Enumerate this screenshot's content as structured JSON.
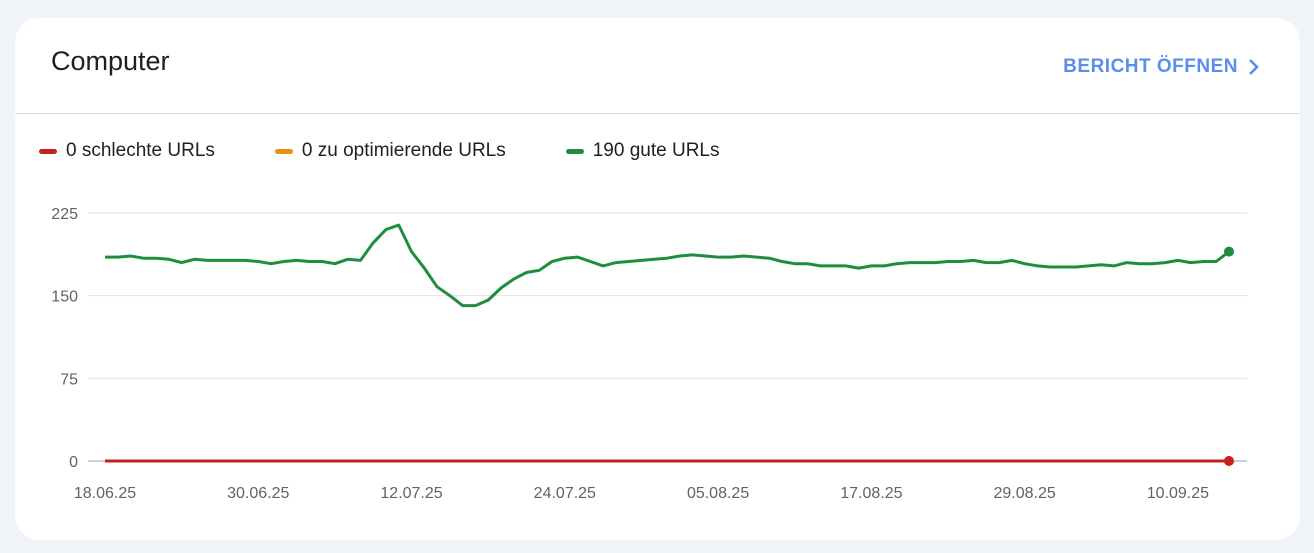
{
  "card": {
    "title": "Computer",
    "link_label": "BERICHT ÖFFNEN",
    "link_icon": "chevron-right-icon"
  },
  "legend": [
    {
      "label": "0 schlechte URLs",
      "color": "#c5221f"
    },
    {
      "label": "0 zu optimierende URLs",
      "color": "#e8900c"
    },
    {
      "label": "190 gute URLs",
      "color": "#1e8e3e"
    }
  ],
  "chart_data": {
    "type": "line",
    "ylim": [
      0,
      225
    ],
    "yticks": [
      "0",
      "75",
      "150",
      "225"
    ],
    "xticks": [
      "18.06.25",
      "30.06.25",
      "12.07.25",
      "24.07.25",
      "05.08.25",
      "17.08.25",
      "29.08.25",
      "10.09.25"
    ],
    "grid": true,
    "legend_position": "top-left",
    "x": [
      "18.06.25",
      "19.06.25",
      "20.06.25",
      "21.06.25",
      "22.06.25",
      "23.06.25",
      "24.06.25",
      "25.06.25",
      "26.06.25",
      "27.06.25",
      "28.06.25",
      "29.06.25",
      "30.06.25",
      "01.07.25",
      "02.07.25",
      "03.07.25",
      "04.07.25",
      "05.07.25",
      "06.07.25",
      "07.07.25",
      "08.07.25",
      "09.07.25",
      "10.07.25",
      "11.07.25",
      "12.07.25",
      "13.07.25",
      "14.07.25",
      "15.07.25",
      "16.07.25",
      "17.07.25",
      "18.07.25",
      "19.07.25",
      "20.07.25",
      "21.07.25",
      "22.07.25",
      "23.07.25",
      "24.07.25",
      "25.07.25",
      "26.07.25",
      "27.07.25",
      "28.07.25",
      "29.07.25",
      "30.07.25",
      "31.07.25",
      "01.08.25",
      "02.08.25",
      "03.08.25",
      "04.08.25",
      "05.08.25",
      "06.08.25",
      "07.08.25",
      "08.08.25",
      "09.08.25",
      "10.08.25",
      "11.08.25",
      "12.08.25",
      "13.08.25",
      "14.08.25",
      "15.08.25",
      "16.08.25",
      "17.08.25",
      "18.08.25",
      "19.08.25",
      "20.08.25",
      "21.08.25",
      "22.08.25",
      "23.08.25",
      "24.08.25",
      "25.08.25",
      "26.08.25",
      "27.08.25",
      "28.08.25",
      "29.08.25",
      "30.08.25",
      "31.08.25",
      "01.09.25",
      "02.09.25",
      "03.09.25",
      "04.09.25",
      "05.09.25",
      "06.09.25",
      "07.09.25",
      "08.09.25",
      "09.09.25",
      "10.09.25",
      "11.09.25",
      "12.09.25",
      "13.09.25",
      "14.09.25"
    ],
    "series": [
      {
        "name": "0 schlechte URLs",
        "color": "#c5221f",
        "values": "zero"
      },
      {
        "name": "0 zu optimierende URLs",
        "color": "#e8900c",
        "values": "zero"
      },
      {
        "name": "190 gute URLs",
        "color": "#1e8e3e",
        "values": [
          185,
          185,
          186,
          184,
          184,
          183,
          180,
          183,
          182,
          182,
          182,
          182,
          181,
          179,
          181,
          182,
          181,
          181,
          179,
          183,
          182,
          198,
          210,
          214,
          190,
          175,
          158,
          150,
          141,
          141,
          146,
          157,
          165,
          171,
          173,
          181,
          184,
          185,
          181,
          177,
          180,
          181,
          182,
          183,
          184,
          186,
          187,
          186,
          185,
          185,
          186,
          185,
          184,
          181,
          179,
          179,
          177,
          177,
          177,
          175,
          177,
          177,
          179,
          180,
          180,
          180,
          181,
          181,
          182,
          180,
          180,
          182,
          179,
          177,
          176,
          176,
          176,
          177,
          178,
          177,
          180,
          179,
          179,
          180,
          182,
          180,
          181,
          181,
          190
        ]
      }
    ]
  }
}
